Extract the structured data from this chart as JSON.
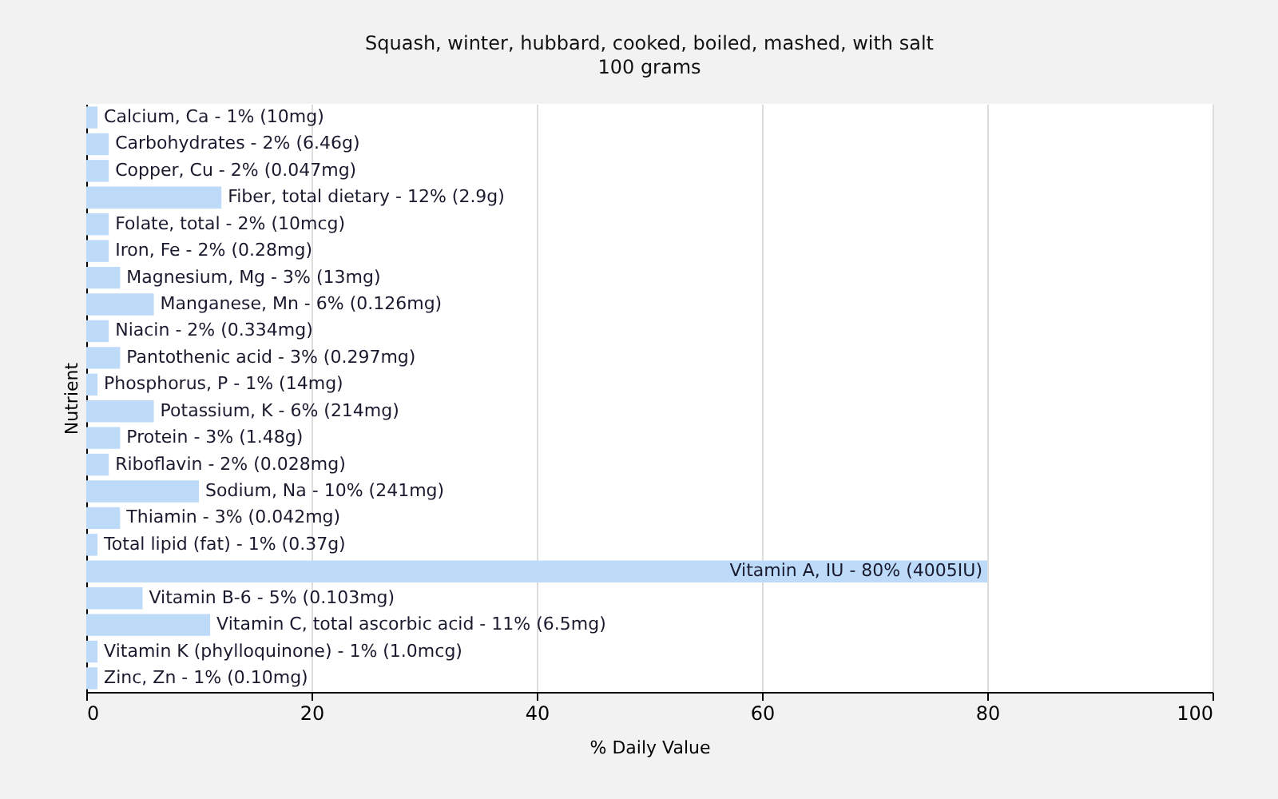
{
  "chart_data": {
    "type": "bar",
    "orientation": "horizontal",
    "title": "Squash, winter, hubbard, cooked, boiled, mashed, with salt",
    "subtitle": "100 grams",
    "xlabel": "% Daily Value",
    "ylabel": "Nutrient",
    "categories": [
      "Calcium, Ca - 1% (10mg)",
      "Carbohydrates - 2% (6.46g)",
      "Copper, Cu - 2% (0.047mg)",
      "Fiber, total dietary - 12% (2.9g)",
      "Folate, total - 2% (10mcg)",
      "Iron, Fe - 2% (0.28mg)",
      "Magnesium, Mg - 3% (13mg)",
      "Manganese, Mn - 6% (0.126mg)",
      "Niacin - 2% (0.334mg)",
      "Pantothenic acid - 3% (0.297mg)",
      "Phosphorus, P - 1% (14mg)",
      "Potassium, K - 6% (214mg)",
      "Protein - 3% (1.48g)",
      "Riboflavin - 2% (0.028mg)",
      "Sodium, Na - 10% (241mg)",
      "Thiamin - 3% (0.042mg)",
      "Total lipid (fat) - 1% (0.37g)",
      "Vitamin A, IU - 80% (4005IU)",
      "Vitamin B-6 - 5% (0.103mg)",
      "Vitamin C, total ascorbic acid - 11% (6.5mg)",
      "Vitamin K (phylloquinone) - 1% (1.0mcg)",
      "Zinc, Zn - 1% (0.10mg)"
    ],
    "values": [
      1,
      2,
      2,
      12,
      2,
      2,
      3,
      6,
      2,
      3,
      1,
      6,
      3,
      2,
      10,
      3,
      1,
      80,
      5,
      11,
      1,
      1
    ],
    "color": "#bedaf9",
    "xlim": [
      0,
      100
    ],
    "xticks": [
      0,
      20,
      40,
      60,
      80,
      100
    ],
    "grid": "x",
    "tick_labels": "x"
  }
}
